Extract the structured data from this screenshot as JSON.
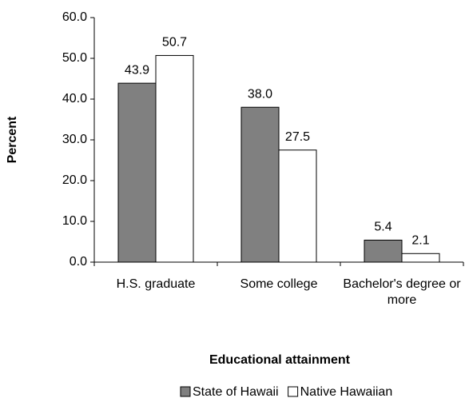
{
  "chart_data": {
    "type": "bar",
    "categories": [
      "H.S. graduate",
      "Some college",
      "Bachelor's degree or more"
    ],
    "series": [
      {
        "name": "State of Hawaii",
        "color": "#808080",
        "values": [
          43.9,
          38,
          5.4
        ],
        "value_labels": [
          "43.9",
          "38.0",
          "5.4"
        ]
      },
      {
        "name": "Native Hawaiian",
        "color": "#ffffff",
        "values": [
          50.7,
          27.5,
          2.1
        ]
      }
    ],
    "xlabel": "Educational attainment",
    "ylabel": "Percent",
    "ylim": [
      0,
      60
    ],
    "yticks": [
      {
        "value": 0,
        "label": "0.0"
      },
      {
        "value": 10,
        "label": "10.0"
      },
      {
        "value": 20,
        "label": "20.0"
      },
      {
        "value": 30,
        "label": "30.0"
      },
      {
        "value": 40,
        "label": "40.0"
      },
      {
        "value": 50,
        "label": "50.0"
      },
      {
        "value": 60,
        "label": "60.0"
      }
    ],
    "grid": false,
    "legend": "bottom"
  }
}
